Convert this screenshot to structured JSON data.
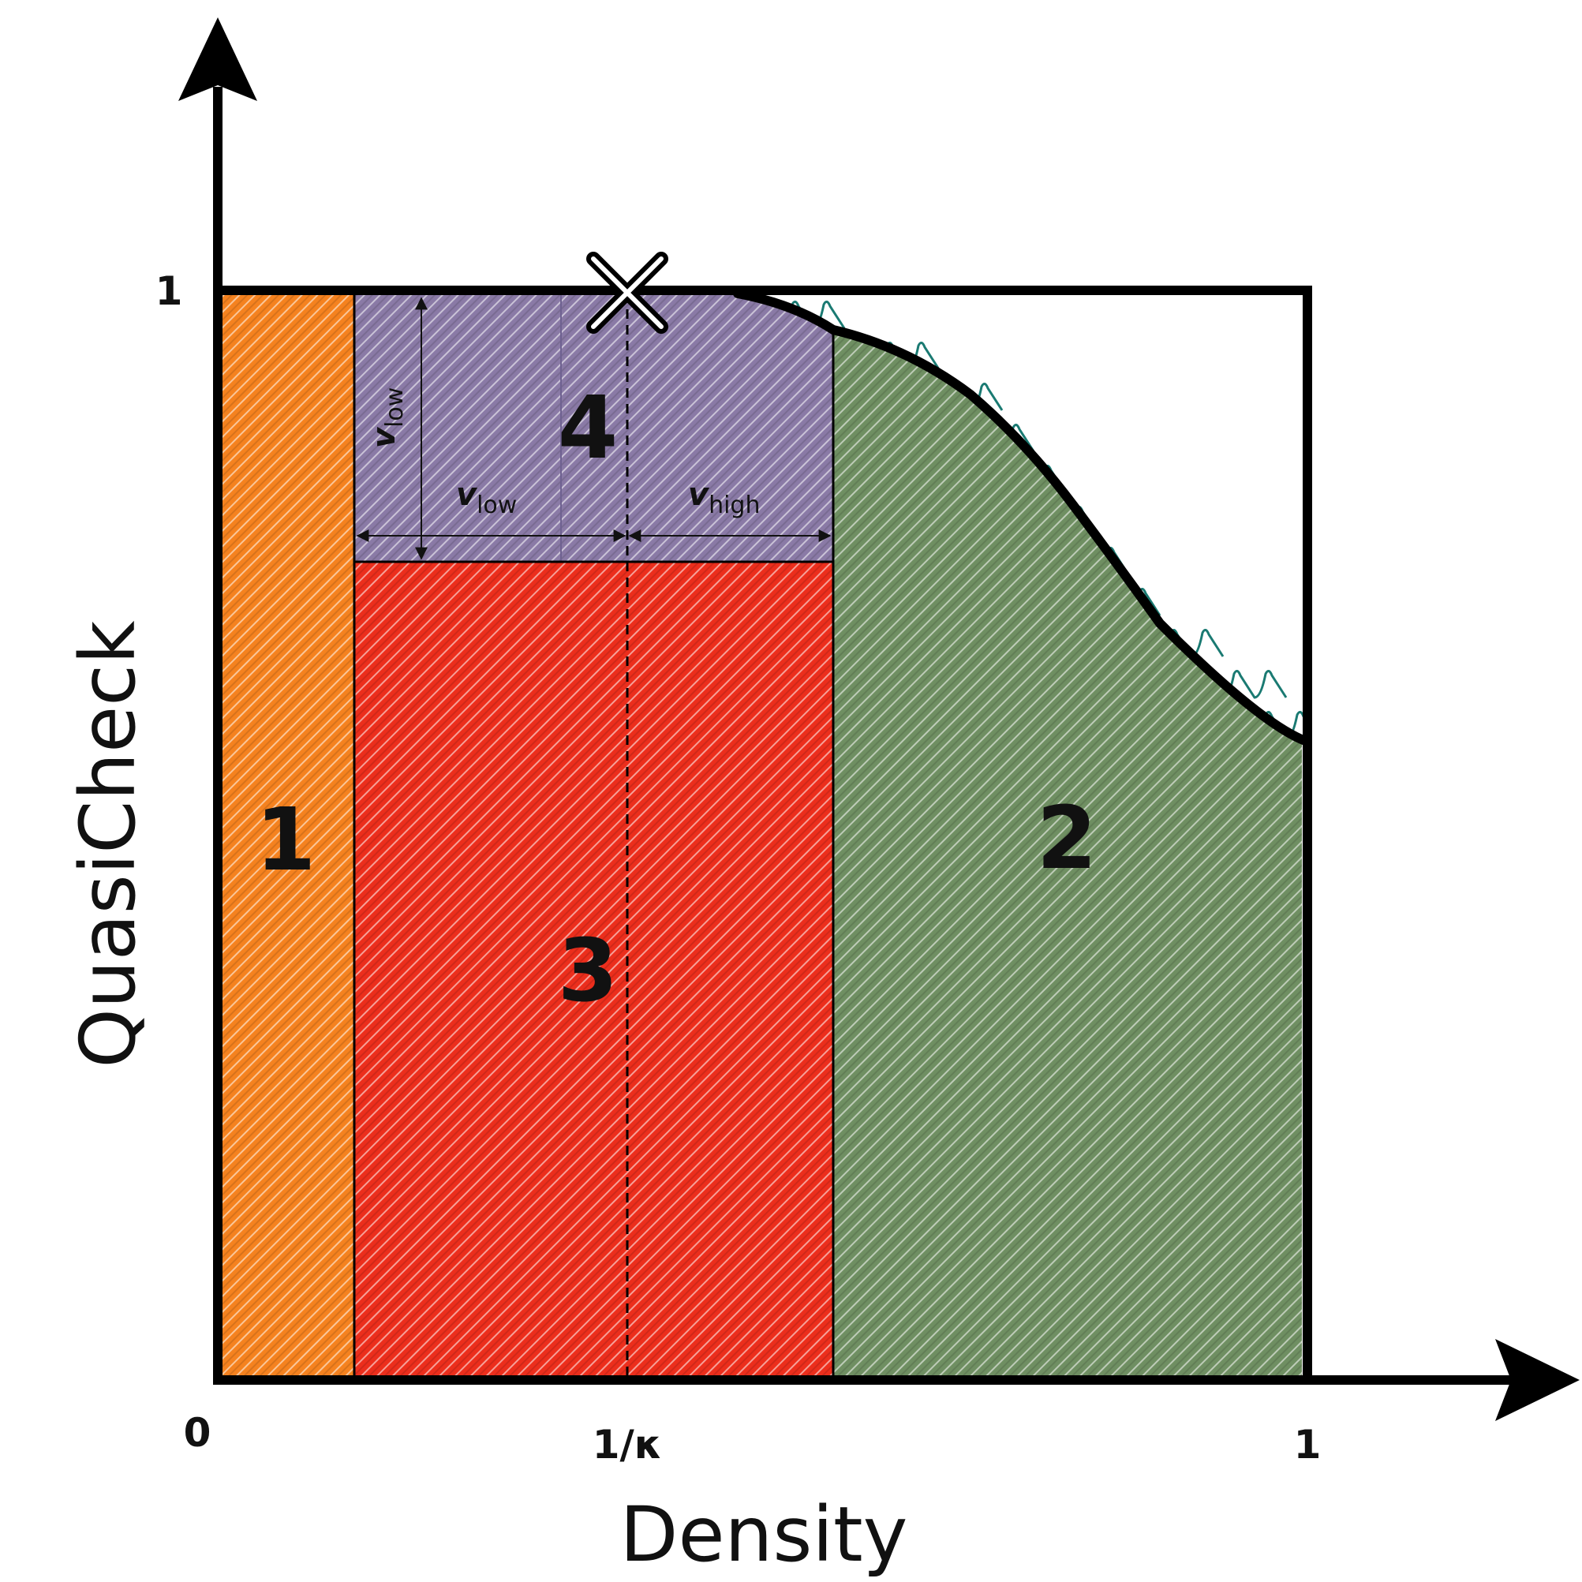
{
  "axes": {
    "x_label": "Density",
    "y_label": "QuasiCheck",
    "x_ticks": [
      "0",
      "1/κ",
      "1"
    ],
    "y_ticks": [
      "1"
    ]
  },
  "regions": [
    {
      "label": "1",
      "color": "#f5821f"
    },
    {
      "label": "2",
      "color": "#6f8f62"
    },
    {
      "label": "3",
      "color": "#ec2e1c"
    },
    {
      "label": "4",
      "color": "#8a7aa6"
    }
  ],
  "annotations": {
    "v_low": "v",
    "v_low_sub": "low",
    "v_high": "v",
    "v_high_sub": "high"
  },
  "colors": {
    "hatch_teal": "#1a7a72",
    "outline": "#000000"
  }
}
